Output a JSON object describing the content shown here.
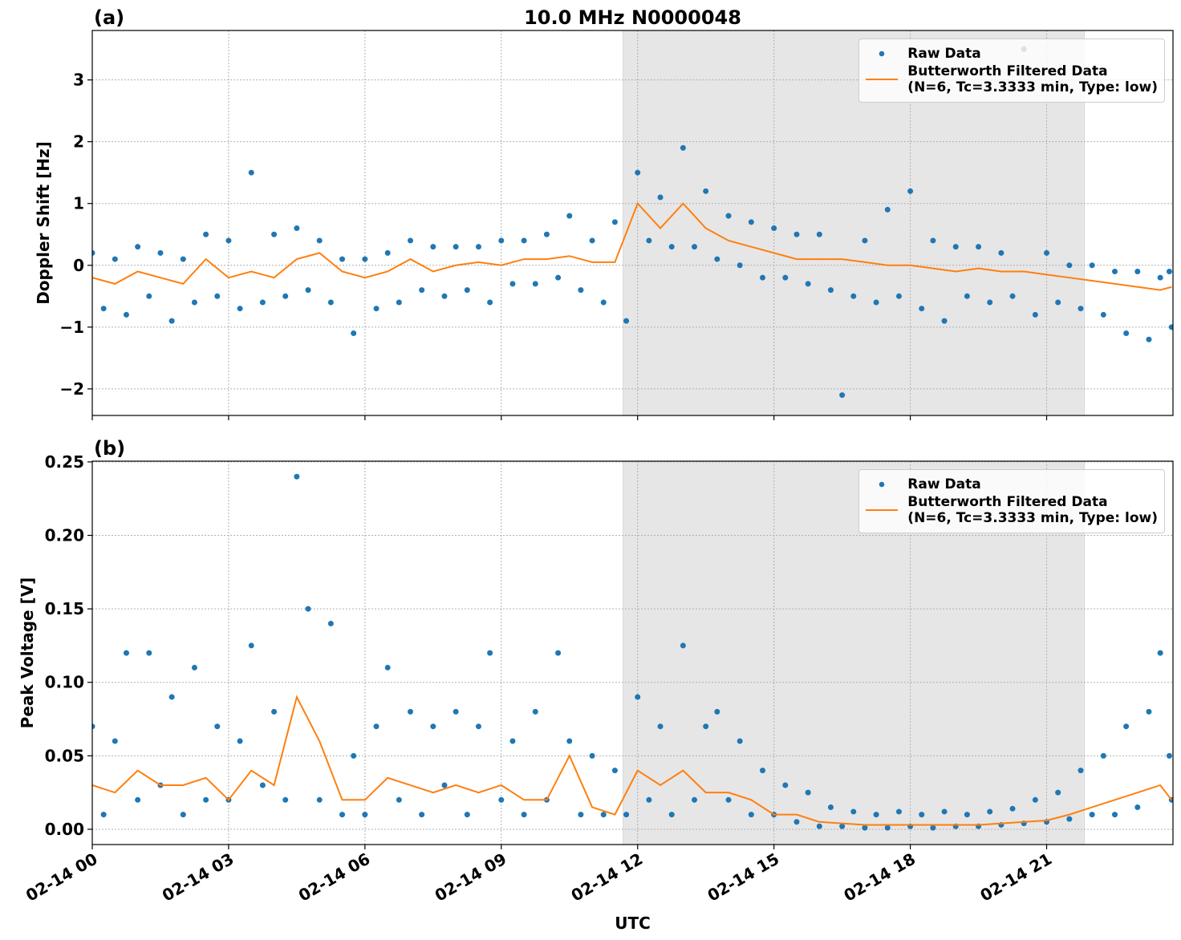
{
  "chart_data": [
    {
      "type": "scatter",
      "title": "10.0 MHz N0000048",
      "panel_label": "(a)",
      "y_label": "Doppler Shift [Hz]",
      "xlim": [
        0,
        23.78
      ],
      "xticks": [
        0,
        3,
        6,
        9,
        12,
        15,
        18,
        21
      ],
      "ylim": [
        -2.43,
        3.8
      ],
      "yticks": [
        {
          "value": -2,
          "label": "−2"
        },
        {
          "value": -1,
          "label": "−1"
        },
        0,
        1,
        2,
        3
      ],
      "grid": true,
      "legend": "upper right",
      "shaded_span": [
        11.68,
        21.83
      ],
      "series": [
        {
          "name": "Raw Data",
          "color": "#1f77b4",
          "mode": "markers",
          "x": [
            0,
            0.25,
            0.5,
            0.75,
            1,
            1.25,
            1.5,
            1.75,
            2,
            2.25,
            2.5,
            2.75,
            3,
            3.25,
            3.5,
            3.75,
            4,
            4.25,
            4.5,
            4.75,
            5,
            5.25,
            5.5,
            5.75,
            6,
            6.25,
            6.5,
            6.75,
            7,
            7.25,
            7.5,
            7.75,
            8,
            8.25,
            8.5,
            8.75,
            9,
            9.25,
            9.5,
            9.75,
            10,
            10.25,
            10.5,
            10.75,
            11,
            11.25,
            11.5,
            11.75,
            12,
            12.25,
            12.5,
            12.75,
            13,
            13.25,
            13.5,
            13.75,
            14,
            14.25,
            14.5,
            14.75,
            15,
            15.25,
            15.5,
            15.75,
            16,
            16.25,
            16.5,
            16.75,
            17,
            17.25,
            17.5,
            17.75,
            18,
            18.25,
            18.5,
            18.75,
            19,
            19.25,
            19.5,
            19.75,
            20,
            20.25,
            20.5,
            20.75,
            21,
            21.25,
            21.5,
            21.75,
            22,
            22.25,
            22.5,
            22.75,
            23,
            23.25,
            23.5,
            23.75,
            23.7
          ],
          "values": [
            0.2,
            -0.7,
            0.1,
            -0.8,
            0.3,
            -0.5,
            0.2,
            -0.9,
            0.1,
            -0.6,
            0.5,
            -0.5,
            0.4,
            -0.7,
            1.5,
            -0.6,
            0.5,
            -0.5,
            0.6,
            -0.4,
            0.4,
            -0.6,
            0.1,
            -1.1,
            0.1,
            -0.7,
            0.2,
            -0.6,
            0.4,
            -0.4,
            0.3,
            -0.5,
            0.3,
            -0.4,
            0.3,
            -0.6,
            0.4,
            -0.3,
            0.4,
            -0.3,
            0.5,
            -0.2,
            0.8,
            -0.4,
            0.4,
            -0.6,
            0.7,
            -0.9,
            1.5,
            0.4,
            1.1,
            0.3,
            1.9,
            0.3,
            1.2,
            0.1,
            0.8,
            0.0,
            0.7,
            -0.2,
            0.6,
            -0.2,
            0.5,
            -0.3,
            0.5,
            -0.4,
            -2.1,
            -0.5,
            0.4,
            -0.6,
            0.9,
            -0.5,
            1.2,
            -0.7,
            0.4,
            -0.9,
            0.3,
            -0.5,
            0.3,
            -0.6,
            0.2,
            -0.5,
            3.5,
            -0.8,
            0.2,
            -0.6,
            0.0,
            -0.7,
            0.0,
            -0.8,
            -0.1,
            -1.1,
            -0.1,
            -1.2,
            -0.2,
            -1.0,
            -0.1
          ]
        },
        {
          "name": "Butterworth Filtered Data\n(N=6, Tc=3.3333 min, Type: low)",
          "color": "#ff7f0e",
          "mode": "lines",
          "x": [
            0,
            0.5,
            1,
            1.5,
            2,
            2.5,
            3,
            3.5,
            4,
            4.5,
            5,
            5.5,
            6,
            6.5,
            7,
            7.5,
            8,
            8.5,
            9,
            9.5,
            10,
            10.5,
            11,
            11.5,
            12,
            12.5,
            13,
            13.5,
            14,
            14.5,
            15,
            15.5,
            16,
            16.5,
            17,
            17.5,
            18,
            18.5,
            19,
            19.5,
            20,
            20.5,
            21,
            21.5,
            22,
            22.5,
            23,
            23.5,
            23.75
          ],
          "values": [
            -0.2,
            -0.3,
            -0.1,
            -0.2,
            -0.3,
            0.1,
            -0.2,
            -0.1,
            -0.2,
            0.1,
            0.2,
            -0.1,
            -0.2,
            -0.1,
            0.1,
            -0.1,
            0.0,
            0.05,
            0.0,
            0.1,
            0.1,
            0.15,
            0.05,
            0.05,
            1.0,
            0.6,
            1.0,
            0.6,
            0.4,
            0.3,
            0.2,
            0.1,
            0.1,
            0.1,
            0.05,
            0.0,
            0.0,
            -0.05,
            -0.1,
            -0.05,
            -0.1,
            -0.1,
            -0.15,
            -0.2,
            -0.25,
            -0.3,
            -0.35,
            -0.4,
            -0.35
          ]
        }
      ]
    },
    {
      "type": "scatter",
      "panel_label": "(b)",
      "x_label": "UTC",
      "y_label": "Peak Voltage [V]",
      "xlim": [
        0,
        23.78
      ],
      "xticks": [
        {
          "value": 0,
          "label": "02-14 00"
        },
        {
          "value": 3,
          "label": "02-14 03"
        },
        {
          "value": 6,
          "label": "02-14 06"
        },
        {
          "value": 9,
          "label": "02-14 09"
        },
        {
          "value": 12,
          "label": "02-14 12"
        },
        {
          "value": 15,
          "label": "02-14 15"
        },
        {
          "value": 18,
          "label": "02-14 18"
        },
        {
          "value": 21,
          "label": "02-14 21"
        }
      ],
      "ylim": [
        -0.0104,
        0.2505
      ],
      "yticks": [
        {
          "value": 0,
          "label": "0.00"
        },
        {
          "value": 0.05,
          "label": "0.05"
        },
        {
          "value": 0.1,
          "label": "0.10"
        },
        {
          "value": 0.15,
          "label": "0.15"
        },
        {
          "value": 0.2,
          "label": "0.20"
        },
        {
          "value": 0.25,
          "label": "0.25"
        }
      ],
      "grid": true,
      "legend": "upper right",
      "shaded_span": [
        11.68,
        21.83
      ],
      "series": [
        {
          "name": "Raw Data",
          "color": "#1f77b4",
          "mode": "markers",
          "x": [
            0,
            0.25,
            0.5,
            0.75,
            1,
            1.25,
            1.5,
            1.75,
            2,
            2.25,
            2.5,
            2.75,
            3,
            3.25,
            3.5,
            3.75,
            4,
            4.25,
            4.5,
            4.75,
            5,
            5.25,
            5.5,
            5.75,
            6,
            6.25,
            6.5,
            6.75,
            7,
            7.25,
            7.5,
            7.75,
            8,
            8.25,
            8.5,
            8.75,
            9,
            9.25,
            9.5,
            9.75,
            10,
            10.25,
            10.5,
            10.75,
            11,
            11.25,
            11.5,
            11.75,
            12,
            12.25,
            12.5,
            12.75,
            13,
            13.25,
            13.5,
            13.75,
            14,
            14.25,
            14.5,
            14.75,
            15,
            15.25,
            15.5,
            15.75,
            16,
            16.25,
            16.5,
            16.75,
            17,
            17.25,
            17.5,
            17.75,
            18,
            18.25,
            18.5,
            18.75,
            19,
            19.25,
            19.5,
            19.75,
            20,
            20.25,
            20.5,
            20.75,
            21,
            21.25,
            21.5,
            21.75,
            22,
            22.25,
            22.5,
            22.75,
            23,
            23.25,
            23.5,
            23.75,
            23.7
          ],
          "values": [
            0.07,
            0.01,
            0.06,
            0.12,
            0.02,
            0.12,
            0.03,
            0.09,
            0.01,
            0.11,
            0.02,
            0.07,
            0.02,
            0.06,
            0.125,
            0.03,
            0.08,
            0.02,
            0.24,
            0.15,
            0.02,
            0.14,
            0.01,
            0.05,
            0.01,
            0.07,
            0.11,
            0.02,
            0.08,
            0.01,
            0.07,
            0.03,
            0.08,
            0.01,
            0.07,
            0.12,
            0.02,
            0.06,
            0.01,
            0.08,
            0.02,
            0.12,
            0.06,
            0.01,
            0.05,
            0.01,
            0.04,
            0.01,
            0.09,
            0.02,
            0.07,
            0.01,
            0.125,
            0.02,
            0.07,
            0.08,
            0.02,
            0.06,
            0.01,
            0.04,
            0.01,
            0.03,
            0.005,
            0.025,
            0.002,
            0.015,
            0.002,
            0.012,
            0.001,
            0.01,
            0.001,
            0.012,
            0.002,
            0.01,
            0.001,
            0.012,
            0.002,
            0.01,
            0.002,
            0.012,
            0.003,
            0.014,
            0.004,
            0.02,
            0.005,
            0.025,
            0.007,
            0.04,
            0.01,
            0.05,
            0.01,
            0.07,
            0.015,
            0.08,
            0.12,
            0.02,
            0.05
          ]
        },
        {
          "name": "Butterworth Filtered Data\n(N=6, Tc=3.3333 min, Type: low)",
          "color": "#ff7f0e",
          "mode": "lines",
          "x": [
            0,
            0.5,
            1,
            1.5,
            2,
            2.5,
            3,
            3.5,
            4,
            4.5,
            5,
            5.5,
            6,
            6.5,
            7,
            7.5,
            8,
            8.5,
            9,
            9.5,
            10,
            10.5,
            11,
            11.5,
            12,
            12.5,
            13,
            13.5,
            14,
            14.5,
            15,
            15.5,
            16,
            16.5,
            17,
            17.5,
            18,
            18.5,
            19,
            19.5,
            20,
            20.5,
            21,
            21.5,
            22,
            22.5,
            23,
            23.5,
            23.75
          ],
          "values": [
            0.03,
            0.025,
            0.04,
            0.03,
            0.03,
            0.035,
            0.02,
            0.04,
            0.03,
            0.09,
            0.06,
            0.02,
            0.02,
            0.035,
            0.03,
            0.025,
            0.03,
            0.025,
            0.03,
            0.02,
            0.02,
            0.05,
            0.015,
            0.01,
            0.04,
            0.03,
            0.04,
            0.025,
            0.025,
            0.02,
            0.01,
            0.01,
            0.005,
            0.004,
            0.003,
            0.003,
            0.003,
            0.003,
            0.003,
            0.003,
            0.004,
            0.005,
            0.006,
            0.01,
            0.015,
            0.02,
            0.025,
            0.03,
            0.02
          ]
        }
      ]
    }
  ]
}
